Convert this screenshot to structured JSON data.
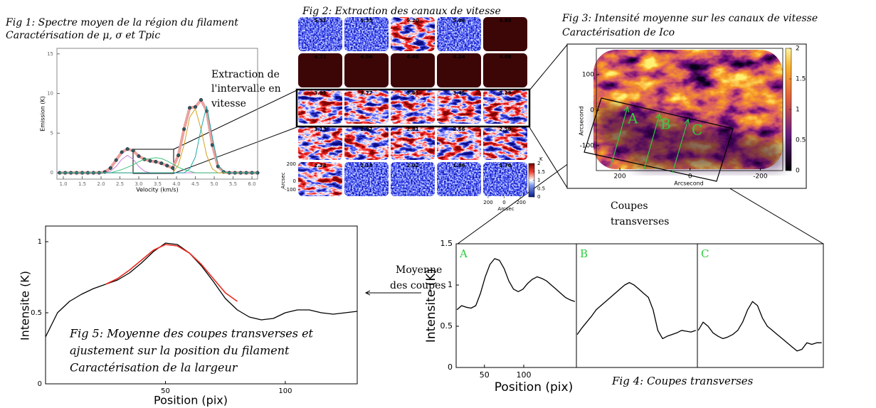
{
  "chart_data": [
    {
      "type": "line",
      "title": "Fig 1:  Spectre moyen de la région du filament",
      "subtitle": "Caractérisation de μ, σ et Tpic",
      "x_label": "Velocity (km/s)",
      "y_label": "Emission (K)",
      "x": [
        0.9,
        1.05,
        1.2,
        1.35,
        1.5,
        1.65,
        1.8,
        1.95,
        2.1,
        2.25,
        2.4,
        2.55,
        2.7,
        2.85,
        3,
        3.15,
        3.3,
        3.45,
        3.6,
        3.75,
        3.9,
        4.05,
        4.2,
        4.35,
        4.5,
        4.65,
        4.8,
        4.95,
        5.1,
        5.25,
        5.4,
        5.55,
        5.7,
        5.85,
        6,
        6.15
      ],
      "series": [
        {
          "color": "#eba2a0",
          "line_width": 4,
          "markers": true,
          "marker_color": "#2b5a63",
          "values": [
            0,
            0,
            0,
            0,
            0,
            0,
            0,
            0,
            0.1,
            0.6,
            1.6,
            2.6,
            3.0,
            2.8,
            2.1,
            1.7,
            1.5,
            1.4,
            1.2,
            0.9,
            0.6,
            2.2,
            5.5,
            8.2,
            8.3,
            9.2,
            7.8,
            3.5,
            0.8,
            0.1,
            0,
            0,
            0,
            0,
            0,
            0
          ]
        },
        {
          "color": "#c77bd6",
          "line_width": 1,
          "values": [
            0,
            0,
            0,
            0,
            0,
            0,
            0,
            0,
            0,
            0.2,
            0.8,
            1.7,
            2.2,
            1.7,
            0.8,
            0.2,
            0,
            0,
            0,
            0,
            0,
            0,
            0,
            0,
            0,
            0,
            0,
            0,
            0,
            0,
            0,
            0,
            0,
            0,
            0,
            0
          ]
        },
        {
          "color": "#3cc47a",
          "line_width": 1,
          "values": [
            0,
            0,
            0,
            0,
            0,
            0,
            0,
            0,
            0,
            0,
            0.2,
            0.4,
            0.7,
            1.0,
            1.4,
            1.7,
            1.8,
            1.9,
            1.8,
            1.5,
            1.1,
            0.7,
            0.4,
            0.2,
            0,
            0,
            0,
            0,
            0,
            0,
            0,
            0,
            0,
            0,
            0,
            0
          ]
        },
        {
          "color": "#d4a020",
          "line_width": 1,
          "values": [
            0,
            0,
            0,
            0,
            0,
            0,
            0,
            0,
            0,
            0,
            0,
            0,
            0,
            0,
            0,
            0,
            0,
            0,
            0,
            0,
            0,
            1.0,
            3.5,
            7.0,
            8.1,
            5.5,
            2.2,
            0.5,
            0,
            0,
            0,
            0,
            0,
            0,
            0,
            0
          ]
        },
        {
          "color": "#1aa7a7",
          "line_width": 1,
          "values": [
            0,
            0,
            0,
            0,
            0,
            0,
            0,
            0,
            0,
            0,
            0,
            0,
            0,
            0,
            0,
            0,
            0,
            0,
            0,
            0,
            0,
            0,
            0,
            0.5,
            2.0,
            5.5,
            8.4,
            4.5,
            1.0,
            0.1,
            0,
            0,
            0,
            0,
            0,
            0
          ]
        }
      ],
      "xlim": [
        0.83,
        6.15
      ],
      "ylim": [
        -0.8,
        15.7
      ],
      "xticks": [
        {
          "value": 1,
          "label": "1.0"
        },
        1.5,
        {
          "value": 2,
          "label": "2.0"
        },
        2.5,
        {
          "value": 3,
          "label": "3.0"
        },
        3.5,
        {
          "value": 4,
          "label": "4.0"
        },
        4.5,
        {
          "value": 5,
          "label": "5.0"
        },
        5.5,
        {
          "value": 6,
          "label": "6.0"
        }
      ],
      "yticks": [
        0,
        5,
        10,
        15
      ]
    },
    {
      "type": "line",
      "title": "A",
      "title_color": "#2ecc40",
      "x_label": "Position (pix)",
      "y_label": "Intensite (K)",
      "x": [
        15,
        21,
        27,
        33,
        39,
        45,
        51,
        57,
        63,
        69,
        75,
        81,
        87,
        93,
        99,
        105,
        111,
        117,
        123,
        129,
        135,
        141,
        147,
        153,
        159,
        165
      ],
      "series": [
        {
          "color": "#000000",
          "line_width": 1.3,
          "values": [
            0.7,
            0.75,
            0.73,
            0.72,
            0.75,
            0.9,
            1.1,
            1.25,
            1.32,
            1.3,
            1.2,
            1.05,
            0.95,
            0.92,
            0.95,
            1.02,
            1.07,
            1.1,
            1.08,
            1.05,
            1.0,
            0.95,
            0.9,
            0.85,
            0.82,
            0.8
          ]
        }
      ],
      "xlim": [
        14,
        167
      ],
      "ylim": [
        0,
        1.5
      ],
      "xticks": [
        50,
        100
      ],
      "yticks": [
        0,
        0.5,
        1,
        1.5
      ]
    },
    {
      "type": "line",
      "title": "B",
      "title_color": "#2ecc40",
      "x": [
        15,
        21,
        27,
        33,
        39,
        45,
        51,
        57,
        63,
        69,
        75,
        81,
        87,
        93,
        99,
        105,
        111,
        117,
        123,
        129,
        135,
        141,
        147,
        153,
        159,
        165
      ],
      "series": [
        {
          "color": "#000000",
          "line_width": 1.3,
          "values": [
            0.4,
            0.48,
            0.55,
            0.62,
            0.7,
            0.75,
            0.8,
            0.85,
            0.9,
            0.95,
            1.0,
            1.03,
            1.0,
            0.95,
            0.9,
            0.85,
            0.7,
            0.45,
            0.35,
            0.38,
            0.4,
            0.42,
            0.45,
            0.44,
            0.43,
            0.45
          ]
        }
      ],
      "xlim": [
        14,
        167
      ],
      "ylim": [
        0,
        1.5
      ]
    },
    {
      "type": "line",
      "title": "C",
      "title_color": "#2ecc40",
      "x": [
        15,
        21,
        27,
        33,
        39,
        45,
        51,
        57,
        63,
        69,
        75,
        81,
        87,
        93,
        99,
        105,
        111,
        117,
        123,
        129,
        135,
        141,
        147,
        153,
        159,
        165
      ],
      "series": [
        {
          "color": "#000000",
          "line_width": 1.3,
          "values": [
            0.45,
            0.55,
            0.5,
            0.42,
            0.38,
            0.35,
            0.37,
            0.4,
            0.45,
            0.55,
            0.7,
            0.8,
            0.75,
            0.6,
            0.5,
            0.45,
            0.4,
            0.35,
            0.3,
            0.25,
            0.2,
            0.22,
            0.3,
            0.28,
            0.3,
            0.3
          ]
        }
      ],
      "xlim": [
        14,
        167
      ],
      "ylim": [
        0,
        1.5
      ]
    },
    {
      "type": "line",
      "x_label": "Position (pix)",
      "y_label": "Intensite (K)",
      "caption": [
        "Fig 5:  Moyenne des coupes transverses et",
        "ajustement sur la position du filament",
        "Caractérisation de la largeur"
      ],
      "x": [
        0,
        5,
        10,
        15,
        20,
        25,
        30,
        35,
        40,
        45,
        50,
        55,
        60,
        65,
        70,
        75,
        80,
        85,
        90,
        95,
        100,
        105,
        110,
        115,
        120,
        125,
        130
      ],
      "series": [
        {
          "color": "#000000",
          "line_width": 1.3,
          "values": [
            0.33,
            0.5,
            0.58,
            0.63,
            0.67,
            0.7,
            0.73,
            0.78,
            0.85,
            0.93,
            0.99,
            0.98,
            0.92,
            0.83,
            0.72,
            0.6,
            0.52,
            0.47,
            0.45,
            0.46,
            0.5,
            0.52,
            0.52,
            0.5,
            0.49,
            0.5,
            0.51
          ]
        },
        {
          "color": "#e8281e",
          "line_width": 1.6,
          "values": [
            null,
            null,
            null,
            null,
            null,
            0.7,
            0.74,
            0.8,
            0.87,
            0.94,
            0.98,
            0.97,
            0.92,
            0.84,
            0.74,
            0.64,
            0.58,
            null,
            null,
            null,
            null,
            null,
            null,
            null,
            null,
            null,
            null
          ]
        }
      ],
      "xlim": [
        0,
        130
      ],
      "ylim": [
        0,
        1.11
      ],
      "xticks": [
        50,
        100
      ],
      "yticks": [
        0,
        0.5,
        1
      ]
    }
  ],
  "channel_maps": {
    "title": "Fig 2:  Extraction des canaux de vitesse",
    "labels": [
      "5.51",
      "5.35",
      "5.20",
      "5.04",
      "4.88",
      "4.72",
      "4.56",
      "4.40",
      "4.24",
      "4.08",
      "3.93",
      "3.77",
      "3.61",
      "3.45",
      "3.29",
      "3.13",
      "2.97",
      "2.81",
      "2.66",
      "2.50",
      "2.34",
      "2.18",
      "2.02",
      "1.86",
      "1.70"
    ],
    "colorbar_label": "K",
    "colorbar_lim": [
      0,
      2
    ],
    "colorbar_ticks": [
      0,
      0.5,
      1,
      1.5,
      2
    ],
    "axis_label": "Arcsec",
    "xlim": [
      262,
      -289
    ],
    "xticks": [
      200,
      0,
      -200
    ],
    "ylim": [
      -175,
      225
    ],
    "yticks": [
      200,
      0,
      -100
    ]
  },
  "intensity_map": {
    "title": "Fig 3:  Intensité moyenne sur les canaux de vitesse",
    "subtitle": "Caractérisation de Ico",
    "x_label": "Arcsecond",
    "y_label": "Arcsecond",
    "xlim": [
      267,
      -264
    ],
    "xticks": [
      200,
      0,
      -200
    ],
    "ylim": [
      -170,
      174
    ],
    "yticks": [
      100,
      0,
      -100
    ],
    "colorbar_lim": [
      0,
      2
    ],
    "colorbar_ticks": [
      0,
      0.5,
      1,
      1.5,
      2
    ]
  },
  "annotations": {
    "extraction": [
      "Extraction de",
      "l'intervalle en",
      "vitesse"
    ],
    "coupes": [
      "Coupes",
      "transverses"
    ],
    "moyenne": [
      "Moyenne",
      "des coupes"
    ],
    "fig4_caption": "Fig 4:  Coupes transverses"
  }
}
